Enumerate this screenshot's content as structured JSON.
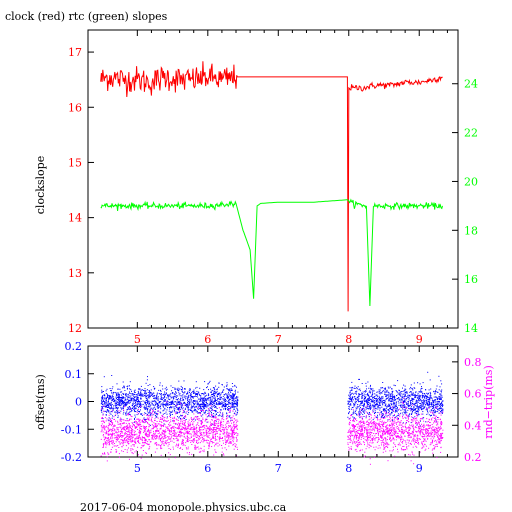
{
  "page": {
    "title": "clock (red) rtc (green) slopes",
    "footer": "2017-06-04 monopole.physics.ubc.ca"
  },
  "colors": {
    "clock": "#ff0000",
    "rtc": "#00ff00",
    "offset": "#0000ff",
    "rndtrip": "#ff00ff",
    "axis": "#000000"
  },
  "chart_data": [
    {
      "type": "line",
      "title": "clock (red) rtc (green) slopes",
      "ylabel": "clockslope",
      "xlim": [
        4.3,
        9.55
      ],
      "ylim": [
        12,
        17.4
      ],
      "y2lim": [
        14,
        26.2
      ],
      "xticks": [
        "5",
        "6",
        "7",
        "8",
        "9"
      ],
      "yticks": [
        "12",
        "13",
        "14",
        "15",
        "16",
        "17"
      ],
      "y2ticks": [
        "14",
        "16",
        "18",
        "20",
        "22",
        "24"
      ],
      "series": [
        {
          "name": "clock",
          "axis": "left",
          "points": [
            [
              4.48,
              16.5
            ],
            [
              4.6,
              16.55
            ],
            [
              4.8,
              16.5
            ],
            [
              5.0,
              16.5
            ],
            [
              5.2,
              16.45
            ],
            [
              5.4,
              16.55
            ],
            [
              5.6,
              16.5
            ],
            [
              5.8,
              16.5
            ],
            [
              6.0,
              16.55
            ],
            [
              6.2,
              16.5
            ],
            [
              6.42,
              16.55
            ],
            [
              6.45,
              16.55
            ],
            [
              7.98,
              16.55
            ],
            [
              7.99,
              12.3
            ],
            [
              8.0,
              16.35
            ],
            [
              8.2,
              16.35
            ],
            [
              8.4,
              16.4
            ],
            [
              8.6,
              16.4
            ],
            [
              8.8,
              16.45
            ],
            [
              9.0,
              16.45
            ],
            [
              9.2,
              16.5
            ],
            [
              9.33,
              16.55
            ]
          ]
        },
        {
          "name": "rtc",
          "axis": "right",
          "points": [
            [
              4.48,
              19.0
            ],
            [
              4.8,
              19.0
            ],
            [
              5.2,
              19.0
            ],
            [
              5.6,
              19.0
            ],
            [
              6.0,
              19.0
            ],
            [
              6.4,
              19.1
            ],
            [
              6.5,
              18.0
            ],
            [
              6.6,
              17.2
            ],
            [
              6.65,
              15.2
            ],
            [
              6.7,
              19.0
            ],
            [
              6.75,
              19.1
            ],
            [
              7.0,
              19.15
            ],
            [
              7.5,
              19.15
            ],
            [
              7.98,
              19.25
            ],
            [
              8.05,
              19.1
            ],
            [
              8.25,
              19.0
            ],
            [
              8.3,
              14.9
            ],
            [
              8.35,
              19.0
            ],
            [
              8.7,
              19.0
            ],
            [
              9.0,
              19.0
            ],
            [
              9.33,
              19.0
            ]
          ]
        }
      ]
    },
    {
      "type": "scatter",
      "ylabel": "offset(ms)",
      "y2label": "rnd−trip(ms)",
      "xlim": [
        4.3,
        9.55
      ],
      "ylim": [
        -0.2,
        0.2
      ],
      "y2lim": [
        0.2,
        0.9
      ],
      "xticks": [
        "5",
        "6",
        "7",
        "8",
        "9"
      ],
      "yticks": [
        "-0.2",
        "-0.1",
        "0",
        "0.1",
        "0.2"
      ],
      "y2ticks": [
        "0.2",
        "0.4",
        "0.6",
        "0.8"
      ],
      "series": [
        {
          "name": "offset",
          "axis": "left",
          "segments": [
            [
              4.48,
              6.42,
              0.0
            ],
            [
              7.98,
              9.33,
              0.0
            ]
          ]
        },
        {
          "name": "rnd-trip",
          "axis": "right",
          "segments": [
            [
              4.48,
              6.42,
              0.36
            ],
            [
              7.98,
              9.33,
              0.36
            ]
          ]
        }
      ]
    }
  ]
}
